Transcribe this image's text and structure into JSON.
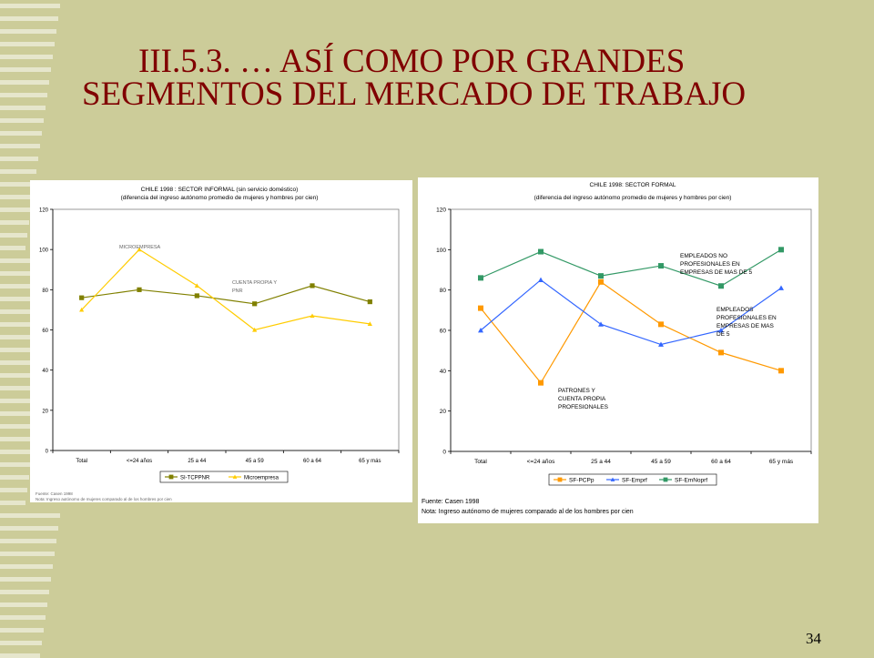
{
  "slide": {
    "title_line1": "III.5.3. … ASÍ  COMO POR GRANDES",
    "title_line2": "SEGMENTOS DEL MERCADO DE TRABAJO",
    "page_number": "34",
    "title_color": "#800000",
    "background_color": "#cccc99"
  },
  "chart_data": [
    {
      "type": "line",
      "title": "CHILE 1998 : SECTOR INFORMAL (sin servicio doméstico)",
      "subtitle": "(diferencia del ingreso autónomo promedio de mujeres y hombres por cien)",
      "categories": [
        "Total",
        "<=24 años",
        "25 a 44",
        "45 a 59",
        "60 a 64",
        "65 y más"
      ],
      "ylim": [
        0,
        120
      ],
      "yticks": [
        0,
        20,
        40,
        60,
        80,
        100,
        120
      ],
      "grid": false,
      "legend_position": "bottom",
      "series": [
        {
          "name": "SI-TCPPNR",
          "color": "#808000",
          "marker": "square",
          "values": [
            76,
            80,
            77,
            73,
            82,
            74
          ]
        },
        {
          "name": "Microempresa",
          "color": "#ffcc00",
          "marker": "triangle",
          "values": [
            70,
            100,
            82,
            60,
            67,
            63
          ]
        }
      ],
      "annotations": [
        "MICROEMPRESA",
        "CUENTA PROPIA Y",
        "PNR"
      ],
      "source": "Fuente: Casen 1998",
      "note": "Nota: Ingreso autónomo de mujeres comparado al de los hombres por cien"
    },
    {
      "type": "line",
      "title": "CHILE 1998:  SECTOR FORMAL",
      "subtitle": "(diferencia del ingreso autónomo promedio de mujeres y hombres por cien)",
      "categories": [
        "Total",
        "<=24 años",
        "25 a 44",
        "45 a 59",
        "60 a 64",
        "65 y más"
      ],
      "ylim": [
        0,
        120
      ],
      "yticks": [
        0,
        20,
        40,
        60,
        80,
        100,
        120
      ],
      "grid": false,
      "legend_position": "bottom",
      "series": [
        {
          "name": "SF-PCPp",
          "color": "#ff9900",
          "marker": "square",
          "values": [
            71,
            34,
            84,
            63,
            49,
            40
          ]
        },
        {
          "name": "SF-Emprf",
          "color": "#3366ff",
          "marker": "triangle",
          "values": [
            60,
            85,
            63,
            53,
            60,
            81
          ]
        },
        {
          "name": "SF-EmNoprf",
          "color": "#339966",
          "marker": "square",
          "values": [
            86,
            99,
            87,
            92,
            82,
            100
          ]
        }
      ],
      "annotations": [
        "EMPLEADOS NO",
        "PROFESIONALES EN",
        "EMPRESAS DE MAS DE 5",
        "EMPLEADOS",
        "PROFESIONALES EN",
        "EMPRESAS DE MAS",
        "DE 5",
        "PATRONES Y",
        "CUENTA PROPIA",
        "PROFESIONALES"
      ],
      "source": "Fuente: Casen 1998",
      "note": "Nota: Ingreso autónomo de mujeres comparado al de los hombres por cien"
    }
  ]
}
